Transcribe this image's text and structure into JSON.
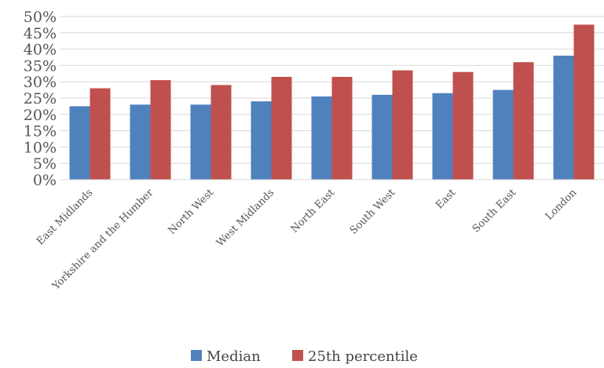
{
  "chart_data": {
    "type": "bar",
    "categories": [
      "East Midlands",
      "Yorkshire and the Humber",
      "North West",
      "West Midlands",
      "North East",
      "South West",
      "East",
      "South East",
      "London"
    ],
    "series": [
      {
        "name": "Median",
        "color": "#4f81bd",
        "values": [
          22.5,
          23,
          23,
          24,
          25.5,
          26,
          26.5,
          27.5,
          38
        ]
      },
      {
        "name": "25th percentile",
        "color": "#c0504d",
        "values": [
          28,
          30.5,
          29,
          31.5,
          31.5,
          33.5,
          33,
          36,
          47.5
        ]
      }
    ],
    "ylim": [
      0,
      50
    ],
    "yticks": [
      "0%",
      "5%",
      "10%",
      "15%",
      "20%",
      "25%",
      "30%",
      "35%",
      "40%",
      "45%",
      "50%"
    ],
    "grid": true,
    "legend": "bottom",
    "xlabel": "",
    "ylabel": "",
    "title": ""
  }
}
